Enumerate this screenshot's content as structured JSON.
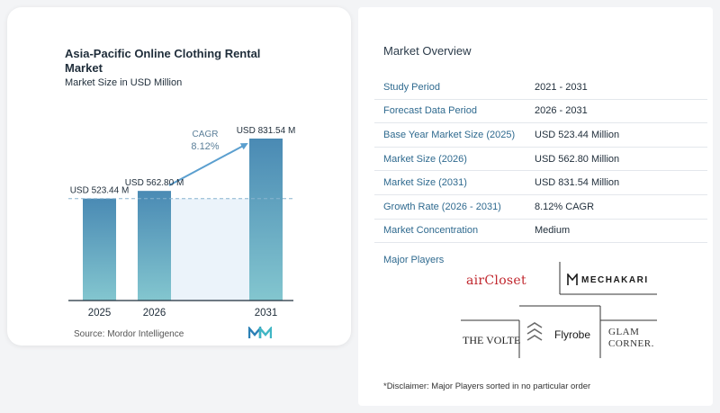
{
  "chart_data": {
    "type": "bar",
    "title": "Asia-Pacific Online Clothing Rental Market",
    "subtitle": "Market Size in USD Million",
    "categories": [
      "2025",
      "2026",
      "2031"
    ],
    "values": [
      523.44,
      562.8,
      831.54
    ],
    "data_labels": [
      "USD 523.44 M",
      "USD 562.80 M",
      "USD 831.54 M"
    ],
    "cagr_label": "CAGR",
    "cagr_value": "8.12%",
    "ylim": [
      0,
      900
    ],
    "grid": false,
    "colors": {
      "bar_top": "#4a8ab4",
      "bar_bottom": "#83c6cf",
      "arrow": "#5b9fcf",
      "baseline": "#1f2d3a",
      "dashed": "#88b4cf",
      "shade": "#dbeaf5"
    }
  },
  "source_text": "Source:  Mordor Intelligence",
  "overview": {
    "title": "Market Overview",
    "rows": [
      {
        "label": "Study Period",
        "value": "2021 - 2031"
      },
      {
        "label": "Forecast Data Period",
        "value": "2026 - 2031"
      },
      {
        "label": "Base Year Market Size (2025)",
        "value": "USD 523.44 Million"
      },
      {
        "label": "Market Size (2026)",
        "value": "USD 562.80 Million"
      },
      {
        "label": "Market Size (2031)",
        "value": "USD 831.54 Million"
      },
      {
        "label": "Growth Rate (2026 - 2031)",
        "value": "8.12% CAGR"
      },
      {
        "label": "Market Concentration",
        "value": "Medium"
      }
    ],
    "players_title": "Major Players",
    "players": {
      "aircloset": "airCloset",
      "mechakari": "MECHAKARI",
      "thevolte": "THE VOLTE",
      "flyrobe": "Flyrobe",
      "glamcorner": "GLAM CORNER."
    },
    "disclaimer": "*Disclaimer: Major Players sorted in no particular order"
  }
}
